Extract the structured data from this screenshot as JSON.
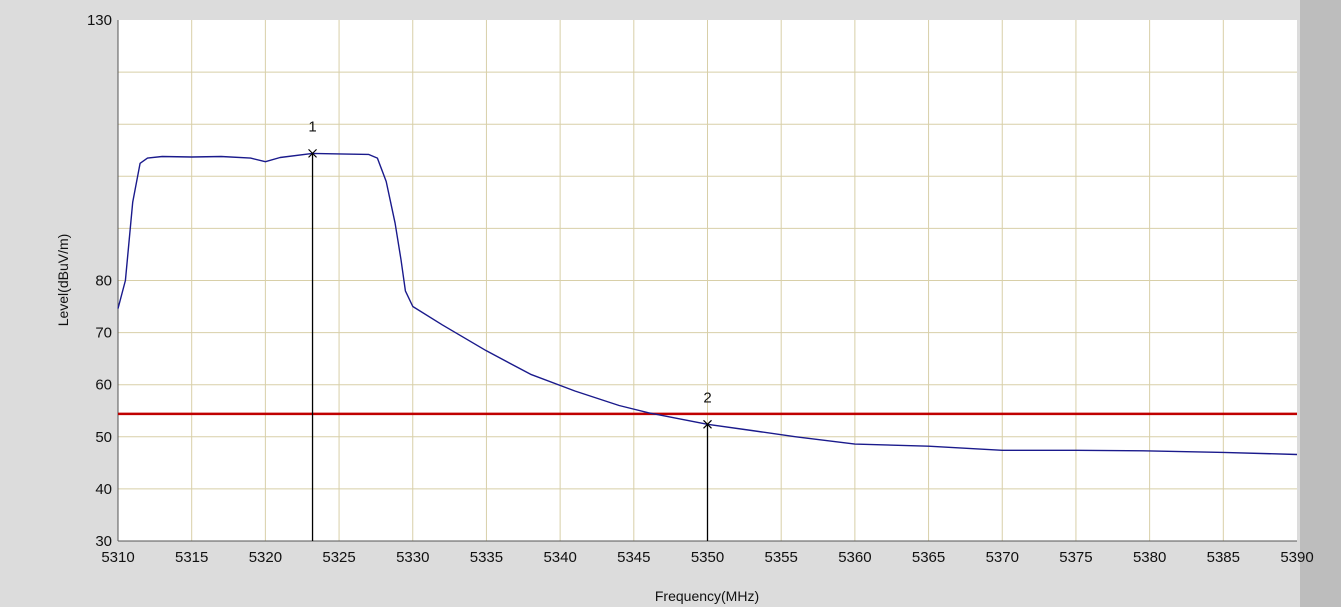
{
  "chart_data": {
    "type": "line",
    "xlabel": "Frequency(MHz)",
    "ylabel": "Level(dBuV/m)",
    "xlim": [
      5310,
      5390
    ],
    "ylim": [
      30,
      130
    ],
    "grid": true,
    "x_ticks": [
      "5310",
      "5315",
      "5320",
      "5325",
      "5330",
      "5335",
      "5340",
      "5345",
      "5350",
      "5355",
      "5360",
      "5365",
      "5370",
      "5375",
      "5380",
      "5385",
      "5390"
    ],
    "y_ticks": [
      "30",
      "40",
      "50",
      "60",
      "70",
      "80",
      "130"
    ],
    "colors": {
      "series": "#1a1a8c",
      "limit": "#c00000",
      "marker": "#000000",
      "grid": "#d8cfa8"
    },
    "series": [
      {
        "x": [
          5310.0,
          5310.5,
          5311.0,
          5311.5,
          5312.0,
          5313.0,
          5315.0,
          5317.0,
          5319.0,
          5320.0,
          5321.0,
          5323.2,
          5325.0,
          5327.0,
          5327.6,
          5328.2,
          5328.8,
          5329.2,
          5329.5,
          5330.0,
          5332.0,
          5335.0,
          5338.0,
          5341.0,
          5344.0,
          5346.0,
          5348.0,
          5350.0,
          5353.0,
          5356.0,
          5360.0,
          5365.0,
          5370.0,
          5375.0,
          5380.0,
          5385.0,
          5390.0
        ],
        "y": [
          74.6,
          80.0,
          95.0,
          102.5,
          103.5,
          103.8,
          103.7,
          103.8,
          103.5,
          102.8,
          103.6,
          104.4,
          104.3,
          104.2,
          103.5,
          99.0,
          91.0,
          84.0,
          78.0,
          75.0,
          71.5,
          66.5,
          62.0,
          58.8,
          56.0,
          54.6,
          53.5,
          52.4,
          51.2,
          50.0,
          48.6,
          48.2,
          47.4,
          47.4,
          47.3,
          47.0,
          46.6
        ]
      }
    ],
    "limit_line": 54.4,
    "markers": [
      {
        "label": "1",
        "x": 5323.2,
        "y": 104.4
      },
      {
        "label": "2",
        "x": 5350.0,
        "y": 52.4
      }
    ]
  }
}
